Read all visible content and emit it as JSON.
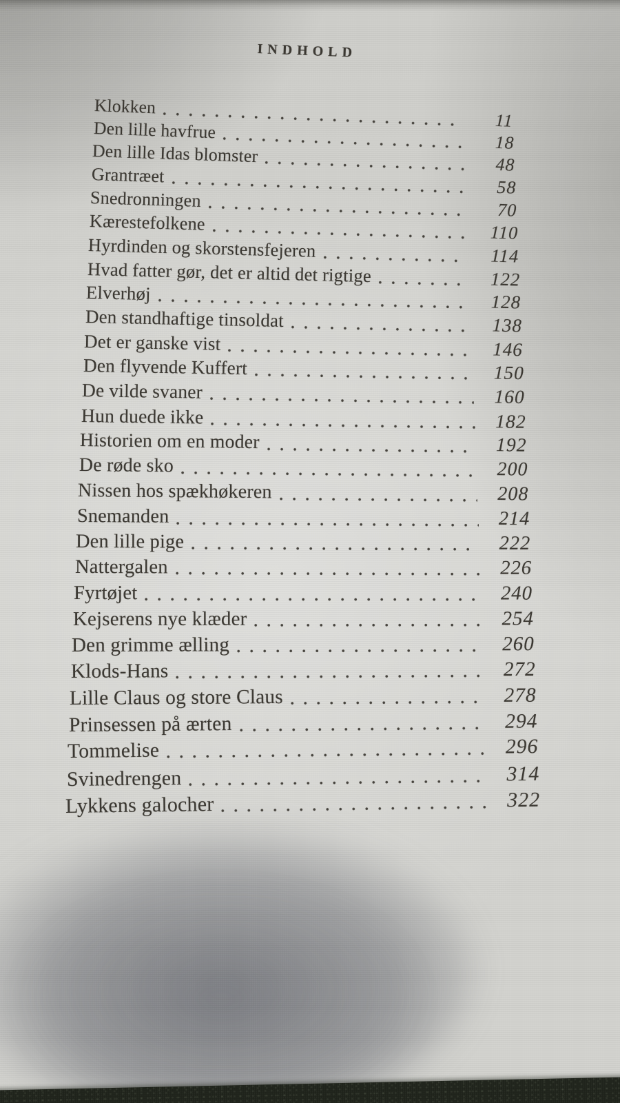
{
  "heading": "INDHOLD",
  "toc": {
    "entries": [
      {
        "title": "Klokken",
        "page": "11"
      },
      {
        "title": "Den lille havfrue",
        "page": "18"
      },
      {
        "title": "Den lille Idas blomster",
        "page": "48"
      },
      {
        "title": "Grantræet",
        "page": "58"
      },
      {
        "title": "Snedronningen",
        "page": "70"
      },
      {
        "title": "Kærestefolkene",
        "page": "110"
      },
      {
        "title": "Hyrdinden og skorstensfejeren",
        "page": "114"
      },
      {
        "title": "Hvad fatter gør, det er altid det rigtige",
        "page": "122"
      },
      {
        "title": "Elverhøj",
        "page": "128"
      },
      {
        "title": "Den standhaftige tinsoldat",
        "page": "138"
      },
      {
        "title": "Det er ganske vist",
        "page": "146"
      },
      {
        "title": "Den flyvende Kuffert",
        "page": "150"
      },
      {
        "title": "De vilde svaner",
        "page": "160"
      },
      {
        "title": "Hun duede ikke",
        "page": "182"
      },
      {
        "title": "Historien om en moder",
        "page": "192"
      },
      {
        "title": "De røde sko",
        "page": "200"
      },
      {
        "title": "Nissen hos spækhøkeren",
        "page": "208"
      },
      {
        "title": "Snemanden",
        "page": "214"
      },
      {
        "title": "Den lille pige",
        "page": "222"
      },
      {
        "title": "Nattergalen",
        "page": "226"
      },
      {
        "title": "Fyrtøjet",
        "page": "240"
      },
      {
        "title": "Kejserens nye klæder",
        "page": "254"
      },
      {
        "title": "Den grimme ælling",
        "page": "260"
      },
      {
        "title": "Klods-Hans",
        "page": "272"
      },
      {
        "title": "Lille Claus og store Claus",
        "page": "278"
      },
      {
        "title": "Prinsessen på ærten",
        "page": "294"
      },
      {
        "title": "Tommelise",
        "page": "296"
      },
      {
        "title": "Svinedrengen",
        "page": "314"
      },
      {
        "title": "Lykkens galocher",
        "page": "322"
      }
    ]
  },
  "colors": {
    "paper": "#d2d2ce",
    "ink": "#3b3832",
    "leader-dot": "#45423c",
    "table": "#20241c",
    "shadow": "#696b72"
  }
}
